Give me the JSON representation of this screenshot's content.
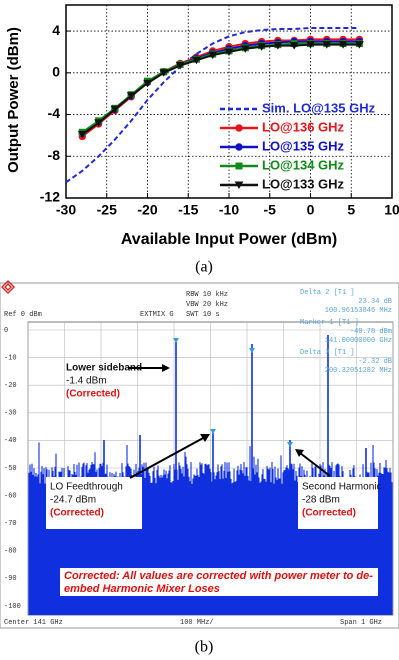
{
  "chart_data": {
    "type": "line",
    "xlabel": "Available Input Power (dBm)",
    "ylabel": "Output Power (dBm)",
    "x": [
      -28,
      -26,
      -24,
      -22,
      -20,
      -18,
      -16,
      -14,
      -12,
      -10,
      -8,
      -6,
      -4,
      -2,
      0,
      2,
      4,
      6
    ],
    "series": [
      {
        "name": "Sim. LO@135 GHz",
        "color": "#1f2bd6",
        "linestyle": "dashed",
        "marker": "none",
        "x": [
          -30,
          -28,
          -26,
          -24,
          -22,
          -20,
          -18,
          -16,
          -14,
          -12,
          -10,
          -8,
          -6,
          -4,
          -2,
          0,
          2,
          4,
          6
        ],
        "values": [
          -10.5,
          -9.4,
          -8.0,
          -6.4,
          -4.6,
          -2.6,
          -0.9,
          0.6,
          1.8,
          2.8,
          3.5,
          3.9,
          4.1,
          4.2,
          4.2,
          4.3,
          4.3,
          4.3,
          4.3
        ]
      },
      {
        "name": "LO@136 GHz",
        "color": "#e8141b",
        "linestyle": "solid",
        "marker": "circle",
        "values": [
          -6.1,
          -4.9,
          -3.6,
          -2.3,
          -0.9,
          0.1,
          0.9,
          1.5,
          2.1,
          2.5,
          2.8,
          3.0,
          3.1,
          3.1,
          3.2,
          3.2,
          3.2,
          3.2
        ]
      },
      {
        "name": "LO@135 GHz",
        "color": "#1010c8",
        "linestyle": "solid",
        "marker": "circle",
        "values": [
          -5.8,
          -4.7,
          -3.5,
          -2.2,
          -0.9,
          0.1,
          0.8,
          1.4,
          1.9,
          2.3,
          2.6,
          2.8,
          2.9,
          3.0,
          3.0,
          3.0,
          3.0,
          3.0
        ]
      },
      {
        "name": "LO@134 GHz",
        "color": "#118a1a",
        "linestyle": "solid",
        "marker": "square",
        "values": [
          -5.7,
          -4.6,
          -3.4,
          -2.1,
          -0.8,
          0.1,
          0.8,
          1.3,
          1.8,
          2.1,
          2.4,
          2.6,
          2.7,
          2.8,
          2.8,
          2.8,
          2.8,
          2.8
        ]
      },
      {
        "name": "LO@133 GHz",
        "color": "#111111",
        "linestyle": "solid",
        "marker": "triangle-down",
        "values": [
          -5.9,
          -4.8,
          -3.5,
          -2.2,
          -1.0,
          0.0,
          0.7,
          1.2,
          1.7,
          2.0,
          2.3,
          2.5,
          2.6,
          2.6,
          2.7,
          2.7,
          2.7,
          2.7
        ]
      }
    ],
    "xlim": [
      -30,
      10
    ],
    "xticks": [
      -30,
      -25,
      -20,
      -15,
      -10,
      -5,
      0,
      5,
      10
    ],
    "ylim": [
      -12,
      6.5
    ],
    "yticks": [
      -12,
      -8,
      -4,
      0,
      4
    ],
    "grid": true,
    "legend": "lower right"
  },
  "captions": {
    "a": "(a)",
    "b": "(b)"
  },
  "spectrum": {
    "header": {
      "ref": "Ref  0 dBm",
      "mixer": "EXTMIX G",
      "rbw": "RBW  10 kHz",
      "vbw": "VBW  20 kHz",
      "swt": "SWT  10 s"
    },
    "markers": [
      [
        "Delta 2 [T1 ]",
        "23.34 dB",
        "100.96153846 MHz"
      ],
      [
        "Marker 1 [T1 ]",
        "-40.78 dBm",
        "141.00000000 GHz"
      ],
      [
        "Delta 3 [T1 ]",
        "-2.32 dB",
        "200.32051282 MHz"
      ]
    ],
    "levels": [
      "0",
      "-10",
      "-20",
      "-30",
      "-40",
      "-50",
      "-60",
      "-70",
      "-80",
      "-90",
      "-100"
    ],
    "annotations": {
      "lower_sideband": [
        "Lower sideband",
        "-1.4 dBm",
        "(Corrected)"
      ],
      "lo_feedthrough": [
        "LO Feedthrough",
        "-24.7 dBm",
        "(Corrected)"
      ],
      "second_harmonic": [
        "Second Harmonic",
        "-28 dBm",
        "(Corrected)"
      ]
    },
    "note": [
      "Corrected: All values are corrected with power meter to de-",
      "embed Harmonic Mixer Loses"
    ],
    "footer": {
      "center": "Center  141 GHz",
      "div": "100 MHz/",
      "span": "Span  1 GHz"
    }
  }
}
